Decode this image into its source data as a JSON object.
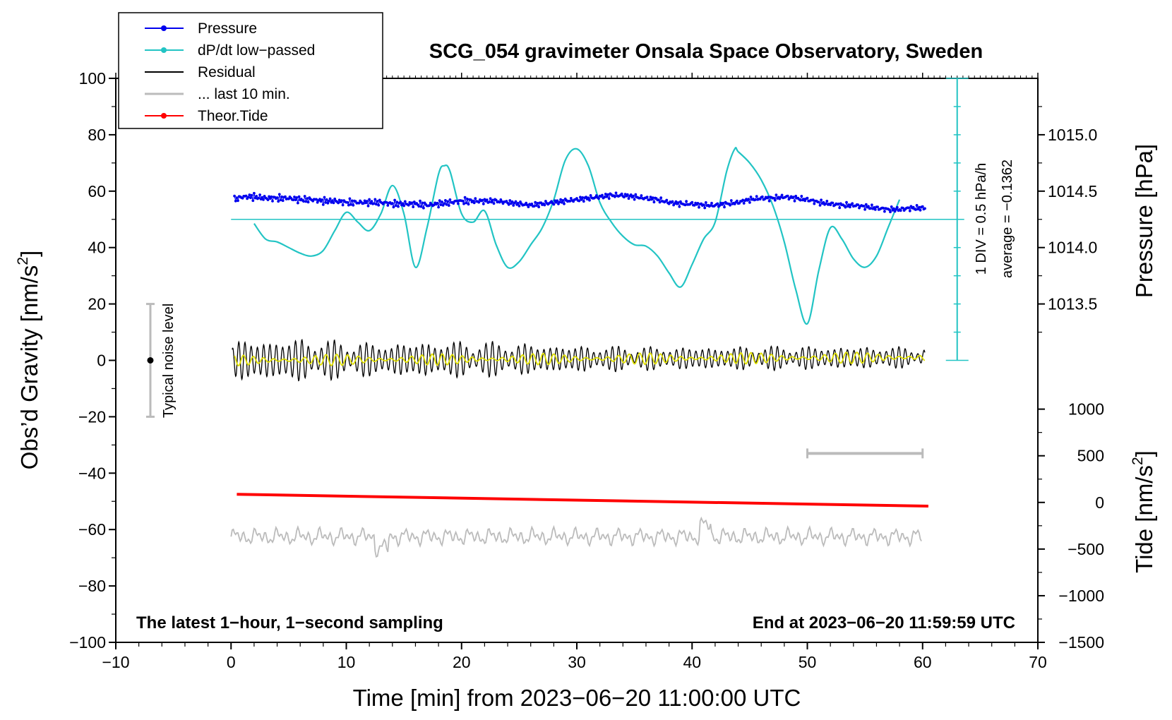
{
  "chart_data": {
    "type": "line",
    "title": "SCG_054 gravimeter Onsala Space Observatory, Sweden",
    "xlabel": "Time [min] from 2023−06−20 11:00:00 UTC",
    "ylabel_left": "Obs’d Gravity [nm/s",
    "ylabel_left_sup": "2",
    "ylabel_left_end": "]",
    "ylabel_right_pressure": "Pressure [hPa]",
    "ylabel_right_tide": "Tide [nm/s",
    "ylabel_right_tide_sup": "2",
    "ylabel_right_tide_end": "]",
    "xlim": [
      -10,
      70
    ],
    "ylim": [
      -100,
      100
    ],
    "x_ticks": [
      -10,
      0,
      10,
      20,
      30,
      40,
      50,
      60,
      70
    ],
    "x_tick_labels": [
      "−10",
      "0",
      "10",
      "20",
      "30",
      "40",
      "50",
      "60",
      "70"
    ],
    "y_ticks": [
      -100,
      -80,
      -60,
      -40,
      -20,
      0,
      20,
      40,
      60,
      80,
      100
    ],
    "y_tick_labels": [
      "−100",
      "−80",
      "−60",
      "−40",
      "−20",
      "0",
      "20",
      "40",
      "60",
      "80",
      "100"
    ],
    "pressure_axis": {
      "ticks": [
        1013.5,
        1014.0,
        1014.5,
        1015.0
      ],
      "tick_labels": [
        "1013.5",
        "1014.0",
        "1014.5",
        "1015.0"
      ],
      "map": {
        "value_a": 1014.0,
        "gravity_a": 40,
        "value_b": 1015.0,
        "gravity_b": 80
      }
    },
    "tide_axis": {
      "ticks": [
        -1500,
        -1000,
        -500,
        0,
        500,
        1000
      ],
      "tick_labels": [
        "−1500",
        "−1000",
        "−500",
        "0",
        "500",
        "1000"
      ],
      "map": {
        "value_a": -1500,
        "gravity_a": -100,
        "value_b": 1000,
        "gravity_b": -17.3
      }
    },
    "legend": {
      "position": "top-left",
      "entries": [
        {
          "label": "Pressure",
          "color": "#0000ee",
          "marker": true
        },
        {
          "label": "dP/dt low−passed",
          "color": "#22c4c4",
          "marker": true
        },
        {
          "label": "Residual",
          "color": "#000000",
          "marker": false
        },
        {
          "label": "... last 10 min.",
          "color": "#bbbbbb",
          "marker": false
        },
        {
          "label": "Theor.Tide",
          "color": "#ff0000",
          "marker": true
        }
      ]
    },
    "annotations": {
      "bottom_left": "The latest 1−hour, 1−second sampling",
      "bottom_right": "End at 2023−06−20 11:59:59 UTC",
      "noise_label": "Typical noise level",
      "dpdt_scale": "1 DIV = 0.5 hPa/h",
      "dpdt_average": "average = −0.1362"
    },
    "noise_bar": {
      "x": -7,
      "y": 0,
      "range": [
        -20,
        20
      ]
    },
    "last10_bar": {
      "x_range": [
        50,
        60
      ],
      "y": -33
    },
    "dpdt_scale_bar": {
      "x": 63,
      "y_range": [
        0,
        100
      ],
      "tick_step": 10,
      "baseline_y": 50
    },
    "series": [
      {
        "name": "Pressure",
        "color": "#0000ee",
        "x": [
          0.3,
          1,
          2,
          3,
          4,
          5,
          6,
          7,
          8,
          9,
          10,
          11,
          12,
          13,
          14,
          15,
          16,
          17,
          18,
          19,
          20,
          21,
          22,
          23,
          24,
          25,
          26,
          27,
          28,
          29,
          30,
          31,
          32,
          33,
          34,
          35,
          36,
          37,
          38,
          39,
          40,
          41,
          42,
          43,
          44,
          45,
          46,
          47,
          48,
          49,
          50,
          51,
          52,
          53,
          54,
          55,
          56,
          57,
          58,
          59,
          60.3
        ],
        "y": [
          57,
          58,
          58,
          57.5,
          57.5,
          57.5,
          57,
          57,
          56.5,
          56.5,
          56,
          56,
          56,
          56,
          55.5,
          55.5,
          55.5,
          55,
          55.5,
          56,
          56.5,
          56.5,
          56.5,
          56.5,
          56,
          55.5,
          55,
          55.5,
          56,
          56.5,
          57,
          57.5,
          58,
          58.5,
          58.5,
          58,
          57.5,
          57,
          56,
          55.5,
          55.5,
          55,
          55,
          55.5,
          56,
          57,
          57.5,
          57.5,
          58,
          57.5,
          57,
          56,
          55.5,
          55,
          55,
          54.5,
          54,
          53.5,
          53.5,
          54,
          54
        ]
      },
      {
        "name": "dP/dt low−passed",
        "color": "#22c4c4",
        "x": [
          2,
          3,
          4,
          5,
          6,
          7,
          8,
          9,
          10,
          11,
          12,
          13,
          14,
          15,
          16,
          17,
          18,
          18.5,
          19,
          20,
          21,
          22,
          23,
          24,
          25,
          26,
          27,
          28,
          29,
          30,
          31,
          32,
          33,
          34,
          35,
          36,
          37,
          38,
          39,
          40,
          41,
          42,
          43,
          43.7,
          44,
          45,
          46,
          47,
          48,
          49,
          50,
          51,
          52,
          53,
          54,
          55,
          56,
          57,
          58
        ],
        "y": [
          48.5,
          43,
          42,
          40,
          38,
          37,
          39,
          46,
          52.5,
          49,
          46,
          52,
          62,
          52,
          33,
          47,
          66,
          69,
          67,
          52,
          49,
          53,
          41,
          33,
          35,
          41,
          47,
          57,
          71,
          75,
          69,
          56,
          49,
          44,
          41,
          40.5,
          37,
          31,
          26,
          34,
          43,
          49,
          67,
          75,
          74,
          70,
          64,
          55,
          42,
          25,
          13,
          32,
          47,
          43,
          36,
          33,
          37,
          47,
          57
        ]
      },
      {
        "name": "Residual",
        "color": "#000000",
        "x_start": 0.1,
        "x_end": 60.2,
        "envelope": [
          [
            0,
            6
          ],
          [
            6,
            6.5
          ],
          [
            12,
            5
          ],
          [
            18,
            5.5
          ],
          [
            24,
            5
          ],
          [
            30,
            4
          ],
          [
            36,
            3.5
          ],
          [
            42,
            3.5
          ],
          [
            48,
            3.5
          ],
          [
            54,
            3.5
          ],
          [
            60,
            3
          ]
        ],
        "oscillation_period_min": 0.55,
        "trend_end": 1
      },
      {
        "name": "Residual (yellow smoothed)",
        "color": "#e0e000",
        "x_start": 0.3,
        "x_end": 60.2,
        "amplitude": 2
      },
      {
        "name": "... last 10 min.",
        "color": "#bbbbbb",
        "x_start": 0,
        "x_end": 60,
        "baseline": -62.5,
        "amplitude": 2.5
      },
      {
        "name": "Theor.Tide",
        "color": "#ff0000",
        "x": [
          0.5,
          60.5
        ],
        "y": [
          -47.5,
          -51.7
        ]
      }
    ]
  }
}
